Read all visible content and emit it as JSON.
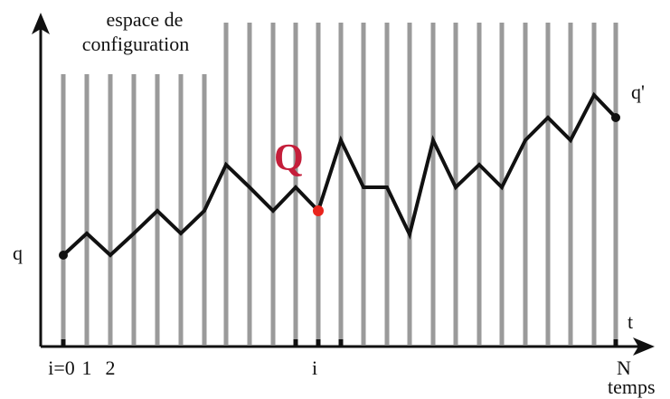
{
  "title": {
    "line1": "espace de",
    "line2": "configuration"
  },
  "labels": {
    "start": "q",
    "end": "q'",
    "point": "Q",
    "axis_t": "t",
    "axis_time": "temps"
  },
  "x_labels": {
    "i0": "i=0",
    "one": "1",
    "two": "2",
    "i": "i",
    "n": "N"
  }
}
